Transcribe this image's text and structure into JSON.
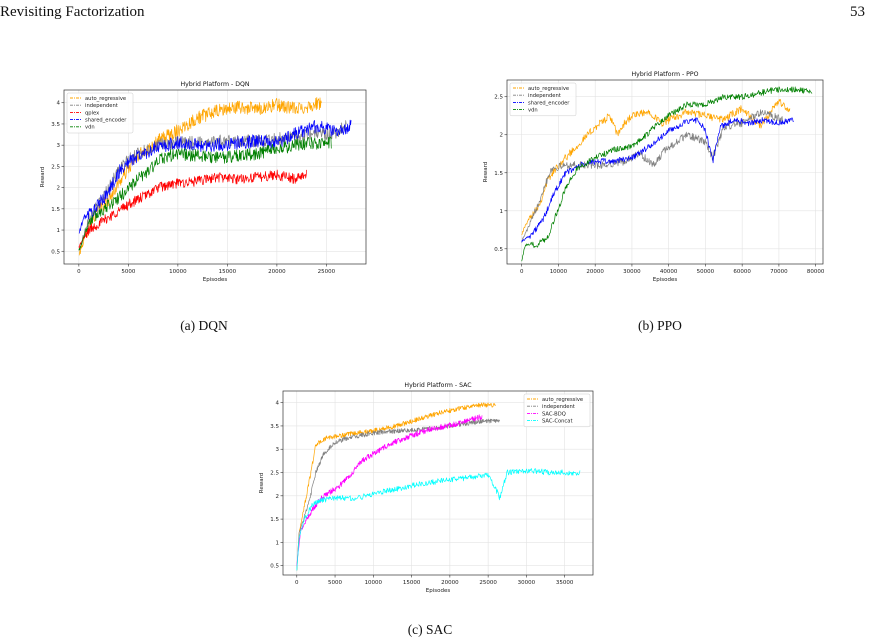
{
  "page": {
    "running_head": "Revisiting Factorization",
    "page_number": "53"
  },
  "chart_data": [
    {
      "id": "dqn",
      "type": "line",
      "title": "Hybrid Platform - DQN",
      "xlabel": "Episodes",
      "ylabel": "Reward",
      "xlim": [
        -1500,
        29000
      ],
      "ylim": [
        0.2,
        4.3
      ],
      "xticks": [
        0,
        5000,
        10000,
        15000,
        20000,
        25000
      ],
      "yticks": [
        0.5,
        1.0,
        1.5,
        2.0,
        2.5,
        3.0,
        3.5,
        4.0
      ],
      "grid": true,
      "legend_position": "top-left",
      "series": [
        {
          "name": "auto_regressive",
          "color": "#ffa500",
          "x_end": 24500,
          "noise": 0.16,
          "points": [
            [
              0,
              0.4
            ],
            [
              1000,
              1.1
            ],
            [
              2000,
              1.5
            ],
            [
              3000,
              1.7
            ],
            [
              4000,
              2.1
            ],
            [
              5000,
              2.45
            ],
            [
              6000,
              2.75
            ],
            [
              8000,
              3.1
            ],
            [
              10000,
              3.35
            ],
            [
              12000,
              3.65
            ],
            [
              14000,
              3.8
            ],
            [
              16000,
              3.9
            ],
            [
              18000,
              3.85
            ],
            [
              20000,
              3.95
            ],
            [
              22000,
              3.85
            ],
            [
              24500,
              4.0
            ]
          ]
        },
        {
          "name": "independent",
          "color": "#808080",
          "x_end": 27000,
          "noise": 0.15,
          "points": [
            [
              0,
              0.5
            ],
            [
              1000,
              1.3
            ],
            [
              2000,
              1.6
            ],
            [
              3000,
              2.0
            ],
            [
              4000,
              2.4
            ],
            [
              5000,
              2.65
            ],
            [
              6000,
              2.8
            ],
            [
              8000,
              3.0
            ],
            [
              10000,
              3.05
            ],
            [
              14000,
              3.1
            ],
            [
              18000,
              3.1
            ],
            [
              20000,
              3.15
            ],
            [
              22000,
              3.2
            ],
            [
              24000,
              3.3
            ],
            [
              25500,
              3.25
            ],
            [
              27000,
              3.45
            ]
          ]
        },
        {
          "name": "qplex",
          "color": "#ff0000",
          "x_end": 23000,
          "noise": 0.12,
          "points": [
            [
              0,
              0.6
            ],
            [
              1000,
              1.0
            ],
            [
              3000,
              1.3
            ],
            [
              5000,
              1.6
            ],
            [
              7000,
              1.85
            ],
            [
              8000,
              2.0
            ],
            [
              10000,
              2.1
            ],
            [
              12000,
              2.15
            ],
            [
              14000,
              2.25
            ],
            [
              16000,
              2.2
            ],
            [
              18000,
              2.25
            ],
            [
              20000,
              2.3
            ],
            [
              22000,
              2.2
            ],
            [
              23000,
              2.35
            ]
          ]
        },
        {
          "name": "shared_encoder",
          "color": "#0000ff",
          "x_end": 27500,
          "noise": 0.16,
          "points": [
            [
              0,
              0.9
            ],
            [
              500,
              1.3
            ],
            [
              1500,
              1.45
            ],
            [
              3000,
              1.9
            ],
            [
              4000,
              2.35
            ],
            [
              5000,
              2.6
            ],
            [
              6000,
              2.75
            ],
            [
              8000,
              2.95
            ],
            [
              10000,
              3.05
            ],
            [
              12000,
              3.0
            ],
            [
              14000,
              3.0
            ],
            [
              16000,
              3.05
            ],
            [
              18000,
              3.1
            ],
            [
              20000,
              3.05
            ],
            [
              22000,
              3.3
            ],
            [
              24000,
              3.45
            ],
            [
              25000,
              3.4
            ],
            [
              26000,
              3.3
            ],
            [
              27500,
              3.45
            ]
          ]
        },
        {
          "name": "vdn",
          "color": "#008000",
          "x_end": 25500,
          "noise": 0.15,
          "points": [
            [
              0,
              0.5
            ],
            [
              1000,
              1.2
            ],
            [
              2500,
              1.5
            ],
            [
              4000,
              1.75
            ],
            [
              5500,
              2.1
            ],
            [
              7000,
              2.4
            ],
            [
              8500,
              2.7
            ],
            [
              10000,
              2.8
            ],
            [
              12000,
              2.75
            ],
            [
              14000,
              2.7
            ],
            [
              16000,
              2.75
            ],
            [
              18000,
              2.8
            ],
            [
              20000,
              2.9
            ],
            [
              22000,
              3.0
            ],
            [
              24000,
              3.05
            ],
            [
              25500,
              3.05
            ]
          ]
        }
      ]
    },
    {
      "id": "ppo",
      "type": "line",
      "title": "Hybrid Platform - PPO",
      "xlabel": "Episodes",
      "ylabel": "Reward",
      "xlim": [
        -4000,
        82000
      ],
      "ylim": [
        0.3,
        2.72
      ],
      "xticks": [
        0,
        10000,
        20000,
        30000,
        40000,
        50000,
        60000,
        70000,
        80000
      ],
      "yticks": [
        0.5,
        1.0,
        1.5,
        2.0,
        2.5
      ],
      "grid": true,
      "legend_position": "top-left",
      "series": [
        {
          "name": "auto_regressive",
          "color": "#ffa500",
          "x_end": 73000,
          "noise": 0.05,
          "points": [
            [
              0,
              0.7
            ],
            [
              2000,
              0.9
            ],
            [
              5000,
              1.1
            ],
            [
              7000,
              1.4
            ],
            [
              10000,
              1.6
            ],
            [
              15000,
              1.85
            ],
            [
              20000,
              2.1
            ],
            [
              24000,
              2.25
            ],
            [
              26000,
              2.0
            ],
            [
              28000,
              2.15
            ],
            [
              30000,
              2.25
            ],
            [
              35000,
              2.3
            ],
            [
              38000,
              2.15
            ],
            [
              45000,
              2.3
            ],
            [
              50000,
              2.25
            ],
            [
              55000,
              2.2
            ],
            [
              60000,
              2.35
            ],
            [
              65000,
              2.1
            ],
            [
              70000,
              2.45
            ],
            [
              73000,
              2.3
            ]
          ]
        },
        {
          "name": "independent",
          "color": "#808080",
          "x_end": 71000,
          "noise": 0.05,
          "points": [
            [
              0,
              0.6
            ],
            [
              3000,
              0.9
            ],
            [
              6000,
              1.3
            ],
            [
              8000,
              1.55
            ],
            [
              12000,
              1.6
            ],
            [
              17000,
              1.6
            ],
            [
              22000,
              1.6
            ],
            [
              28000,
              1.65
            ],
            [
              32000,
              1.75
            ],
            [
              36000,
              1.6
            ],
            [
              39000,
              1.8
            ],
            [
              45000,
              2.0
            ],
            [
              50000,
              1.9
            ],
            [
              52000,
              1.7
            ],
            [
              55000,
              2.1
            ],
            [
              60000,
              2.15
            ],
            [
              65000,
              2.3
            ],
            [
              71000,
              2.2
            ]
          ]
        },
        {
          "name": "shared_encoder",
          "color": "#0000ff",
          "x_end": 74000,
          "noise": 0.04,
          "points": [
            [
              0,
              0.6
            ],
            [
              3000,
              0.7
            ],
            [
              6000,
              0.9
            ],
            [
              9000,
              1.25
            ],
            [
              12000,
              1.5
            ],
            [
              16000,
              1.6
            ],
            [
              20000,
              1.65
            ],
            [
              25000,
              1.65
            ],
            [
              30000,
              1.7
            ],
            [
              35000,
              1.85
            ],
            [
              40000,
              2.05
            ],
            [
              44000,
              2.15
            ],
            [
              48000,
              2.2
            ],
            [
              50000,
              2.05
            ],
            [
              52000,
              1.65
            ],
            [
              54000,
              2.1
            ],
            [
              58000,
              2.2
            ],
            [
              62000,
              2.15
            ],
            [
              66000,
              2.2
            ],
            [
              70000,
              2.15
            ],
            [
              74000,
              2.2
            ]
          ]
        },
        {
          "name": "vdn",
          "color": "#008000",
          "x_end": 79000,
          "noise": 0.04,
          "points": [
            [
              0,
              0.35
            ],
            [
              1000,
              0.55
            ],
            [
              4000,
              0.55
            ],
            [
              7000,
              0.65
            ],
            [
              9000,
              0.9
            ],
            [
              12000,
              1.3
            ],
            [
              15000,
              1.55
            ],
            [
              20000,
              1.7
            ],
            [
              25000,
              1.8
            ],
            [
              30000,
              1.85
            ],
            [
              33000,
              1.95
            ],
            [
              36000,
              2.1
            ],
            [
              40000,
              2.25
            ],
            [
              45000,
              2.4
            ],
            [
              50000,
              2.4
            ],
            [
              55000,
              2.5
            ],
            [
              60000,
              2.5
            ],
            [
              65000,
              2.55
            ],
            [
              70000,
              2.6
            ],
            [
              75000,
              2.6
            ],
            [
              79000,
              2.55
            ]
          ]
        }
      ]
    },
    {
      "id": "sac",
      "type": "line",
      "title": "Hybrid Platform - SAC",
      "xlabel": "Episodes",
      "ylabel": "Reward",
      "xlim": [
        -1800,
        38700
      ],
      "ylim": [
        0.3,
        4.25
      ],
      "xticks": [
        0,
        5000,
        10000,
        15000,
        20000,
        25000,
        30000,
        35000
      ],
      "yticks": [
        0.5,
        1.0,
        1.5,
        2.0,
        2.5,
        3.0,
        3.5,
        4.0
      ],
      "grid": true,
      "legend_position": "top-right",
      "series": [
        {
          "name": "auto_regressive",
          "color": "#ffa500",
          "x_end": 26000,
          "noise": 0.05,
          "points": [
            [
              0,
              0.4
            ],
            [
              300,
              1.2
            ],
            [
              1500,
              2.2
            ],
            [
              2500,
              3.1
            ],
            [
              4000,
              3.25
            ],
            [
              6000,
              3.3
            ],
            [
              8000,
              3.35
            ],
            [
              10000,
              3.4
            ],
            [
              13000,
              3.5
            ],
            [
              16000,
              3.65
            ],
            [
              19000,
              3.8
            ],
            [
              22000,
              3.9
            ],
            [
              24000,
              3.95
            ],
            [
              26000,
              3.95
            ]
          ]
        },
        {
          "name": "independent",
          "color": "#808080",
          "x_end": 26500,
          "noise": 0.05,
          "points": [
            [
              0,
              0.4
            ],
            [
              300,
              1.2
            ],
            [
              1500,
              1.8
            ],
            [
              2500,
              2.5
            ],
            [
              3500,
              2.9
            ],
            [
              5000,
              3.15
            ],
            [
              7000,
              3.25
            ],
            [
              10000,
              3.35
            ],
            [
              14000,
              3.4
            ],
            [
              18000,
              3.45
            ],
            [
              22000,
              3.55
            ],
            [
              24000,
              3.6
            ],
            [
              26500,
              3.6
            ]
          ]
        },
        {
          "name": "SAC-BDQ",
          "color": "#ff00ff",
          "x_end": 24200,
          "noise": 0.06,
          "points": [
            [
              0,
              0.5
            ],
            [
              500,
              1.25
            ],
            [
              2000,
              1.7
            ],
            [
              3500,
              2.0
            ],
            [
              5500,
              2.2
            ],
            [
              7000,
              2.45
            ],
            [
              8500,
              2.75
            ],
            [
              10000,
              2.9
            ],
            [
              12000,
              3.1
            ],
            [
              15000,
              3.3
            ],
            [
              18000,
              3.45
            ],
            [
              21000,
              3.55
            ],
            [
              23000,
              3.65
            ],
            [
              24200,
              3.7
            ]
          ]
        },
        {
          "name": "SAC-Concat",
          "color": "#00ffff",
          "x_end": 37000,
          "noise": 0.06,
          "points": [
            [
              0,
              0.4
            ],
            [
              300,
              1.1
            ],
            [
              1000,
              1.5
            ],
            [
              2000,
              1.8
            ],
            [
              3000,
              1.9
            ],
            [
              5000,
              1.95
            ],
            [
              8000,
              1.95
            ],
            [
              10000,
              2.05
            ],
            [
              13000,
              2.15
            ],
            [
              16000,
              2.25
            ],
            [
              20000,
              2.35
            ],
            [
              23000,
              2.4
            ],
            [
              25000,
              2.45
            ],
            [
              26000,
              2.15
            ],
            [
              26500,
              1.95
            ],
            [
              27500,
              2.5
            ],
            [
              30000,
              2.55
            ],
            [
              33000,
              2.5
            ],
            [
              35000,
              2.5
            ],
            [
              37000,
              2.5
            ]
          ]
        }
      ]
    }
  ],
  "captions": {
    "dqn": "(a) DQN",
    "ppo": "(b) PPO",
    "sac": "(c) SAC"
  }
}
